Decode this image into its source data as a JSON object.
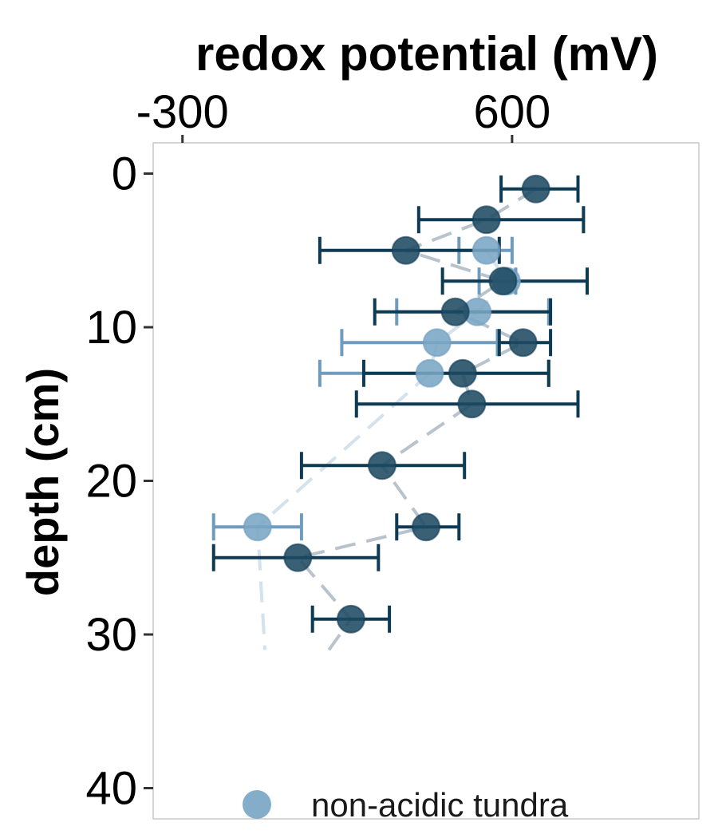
{
  "chart_data": {
    "type": "scatter",
    "title": "redox potential (mV)",
    "xlabel": "redox potential (mV)",
    "ylabel": "depth (cm)",
    "x_axis_position": "top",
    "y_axis_reversed": true,
    "xlim": [
      -380,
      1110
    ],
    "ylim": [
      -2,
      42
    ],
    "x_ticks": [
      -300,
      600
    ],
    "y_ticks": [
      0,
      10,
      20,
      30,
      40
    ],
    "grid": false,
    "legend_position": "bottom",
    "colors": {
      "dark_point": "#1e4a62",
      "dark_error": "#0f3a54",
      "dark_line": "#b8c3cb",
      "light_point": "#7aa6c4",
      "light_error": "#6f9bbd",
      "light_line": "#d3e2ec"
    },
    "series": [
      {
        "name": "",
        "style": "dark",
        "points": [
          {
            "depth": 1,
            "value": 665,
            "low": 570,
            "high": 780
          },
          {
            "depth": 3,
            "value": 530,
            "low": 345,
            "high": 795
          },
          {
            "depth": 5,
            "value": 310,
            "low": 75,
            "high": 565
          },
          {
            "depth": 7,
            "value": 575,
            "low": 410,
            "high": 805
          },
          {
            "depth": 9,
            "value": 445,
            "low": 225,
            "high": 705
          },
          {
            "depth": 11,
            "value": 630,
            "low": 565,
            "high": 705
          },
          {
            "depth": 13,
            "value": 465,
            "low": 195,
            "high": 700
          },
          {
            "depth": 15,
            "value": 490,
            "low": 175,
            "high": 780
          },
          {
            "depth": 19,
            "value": 245,
            "low": 25,
            "high": 470
          },
          {
            "depth": 23,
            "value": 365,
            "low": 285,
            "high": 455
          },
          {
            "depth": 25,
            "value": 15,
            "low": -215,
            "high": 235
          },
          {
            "depth": 29,
            "value": 160,
            "low": 55,
            "high": 265
          }
        ],
        "line_end": {
          "depth": 31,
          "value": 100
        }
      },
      {
        "name": "non-acidic tundra",
        "style": "light",
        "points": [
          {
            "depth": 5,
            "value": 530,
            "low": 455,
            "high": 600
          },
          {
            "depth": 7,
            "value": 585,
            "low": 510,
            "high": 610
          },
          {
            "depth": 9,
            "value": 505,
            "low": 285,
            "high": 700
          },
          {
            "depth": 11,
            "value": 395,
            "low": 135,
            "high": 560
          },
          {
            "depth": 13,
            "value": 375,
            "low": 75,
            "high": 700
          },
          {
            "depth": 23,
            "value": -95,
            "low": -215,
            "high": 25
          }
        ],
        "line_end": {
          "depth": 31,
          "value": -75
        }
      }
    ],
    "legend": [
      {
        "label": "non-acidic tundra",
        "style": "light"
      }
    ]
  }
}
